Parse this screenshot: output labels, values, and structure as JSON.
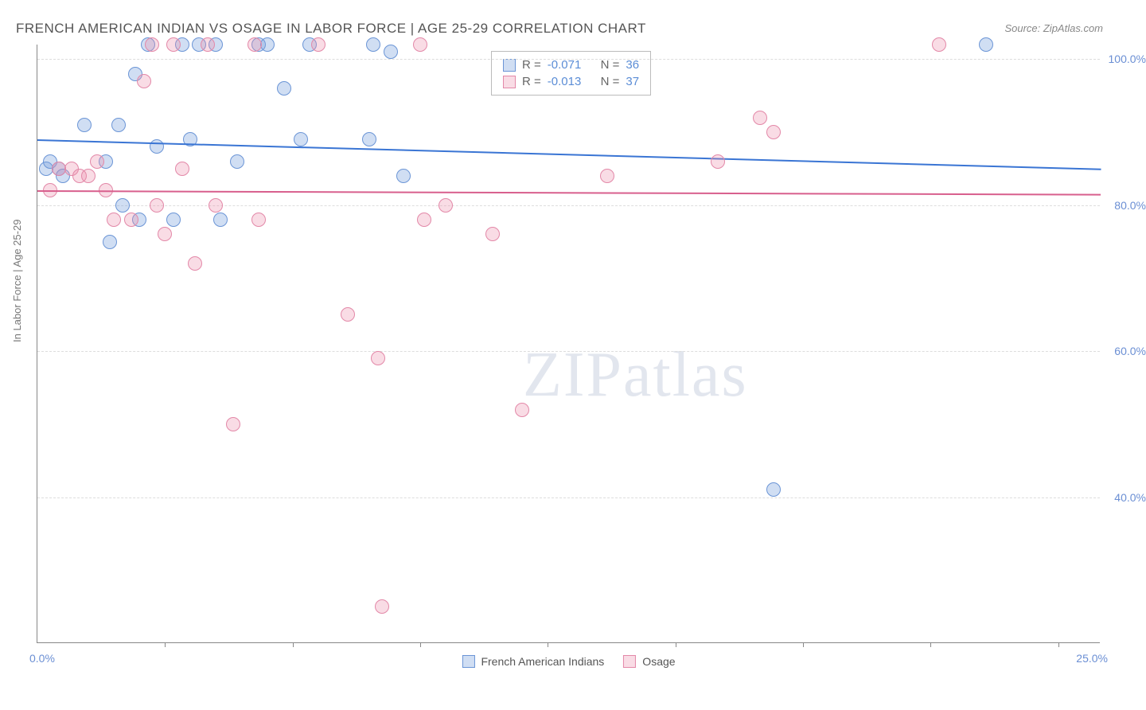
{
  "title": "FRENCH AMERICAN INDIAN VS OSAGE IN LABOR FORCE | AGE 25-29 CORRELATION CHART",
  "source": "Source: ZipAtlas.com",
  "y_axis_label": "In Labor Force | Age 25-29",
  "watermark_bold": "ZIP",
  "watermark_light": "atlas",
  "chart": {
    "type": "scatter",
    "xlim": [
      0,
      25
    ],
    "ylim": [
      20,
      102
    ],
    "y_ticks": [
      40,
      60,
      80,
      100
    ],
    "y_tick_labels": [
      "40.0%",
      "60.0%",
      "80.0%",
      "100.0%"
    ],
    "x_ticks": [
      3,
      6,
      9,
      12,
      15,
      18,
      21,
      24
    ],
    "x_min_label": "0.0%",
    "x_max_label": "25.0%",
    "grid_color": "#dddddd",
    "axis_color": "#888888",
    "background_color": "#ffffff",
    "point_radius": 9,
    "series": [
      {
        "name": "French American Indians",
        "fill": "rgba(120,160,220,0.35)",
        "stroke": "#6b95d6",
        "trend_color": "#3a75d4",
        "R": "-0.071",
        "N": "36",
        "trend": {
          "x1": 0,
          "y1": 89,
          "x2": 25,
          "y2": 85
        },
        "points": [
          {
            "x": 0.2,
            "y": 85
          },
          {
            "x": 0.3,
            "y": 86
          },
          {
            "x": 0.5,
            "y": 85
          },
          {
            "x": 0.6,
            "y": 84
          },
          {
            "x": 1.1,
            "y": 91
          },
          {
            "x": 1.6,
            "y": 86
          },
          {
            "x": 1.7,
            "y": 75
          },
          {
            "x": 1.9,
            "y": 91
          },
          {
            "x": 2.0,
            "y": 80
          },
          {
            "x": 2.3,
            "y": 98
          },
          {
            "x": 2.4,
            "y": 78
          },
          {
            "x": 2.6,
            "y": 102
          },
          {
            "x": 2.8,
            "y": 88
          },
          {
            "x": 3.2,
            "y": 78
          },
          {
            "x": 3.4,
            "y": 102
          },
          {
            "x": 3.6,
            "y": 89
          },
          {
            "x": 3.8,
            "y": 102
          },
          {
            "x": 4.2,
            "y": 102
          },
          {
            "x": 4.3,
            "y": 78
          },
          {
            "x": 4.7,
            "y": 86
          },
          {
            "x": 5.2,
            "y": 102
          },
          {
            "x": 5.4,
            "y": 102
          },
          {
            "x": 5.8,
            "y": 96
          },
          {
            "x": 6.2,
            "y": 89
          },
          {
            "x": 6.4,
            "y": 102
          },
          {
            "x": 7.8,
            "y": 89
          },
          {
            "x": 7.9,
            "y": 102
          },
          {
            "x": 8.3,
            "y": 101
          },
          {
            "x": 8.6,
            "y": 84
          },
          {
            "x": 17.3,
            "y": 41
          },
          {
            "x": 22.3,
            "y": 102
          }
        ]
      },
      {
        "name": "Osage",
        "fill": "rgba(235,140,170,0.30)",
        "stroke": "#e388a8",
        "trend_color": "#d85f8d",
        "R": "-0.013",
        "N": "37",
        "trend": {
          "x1": 0,
          "y1": 82,
          "x2": 25,
          "y2": 81.5
        },
        "points": [
          {
            "x": 0.3,
            "y": 82
          },
          {
            "x": 0.5,
            "y": 85
          },
          {
            "x": 0.8,
            "y": 85
          },
          {
            "x": 1.0,
            "y": 84
          },
          {
            "x": 1.2,
            "y": 84
          },
          {
            "x": 1.4,
            "y": 86
          },
          {
            "x": 1.6,
            "y": 82
          },
          {
            "x": 1.8,
            "y": 78
          },
          {
            "x": 2.2,
            "y": 78
          },
          {
            "x": 2.5,
            "y": 97
          },
          {
            "x": 2.7,
            "y": 102
          },
          {
            "x": 2.8,
            "y": 80
          },
          {
            "x": 3.0,
            "y": 76
          },
          {
            "x": 3.2,
            "y": 102
          },
          {
            "x": 3.4,
            "y": 85
          },
          {
            "x": 3.7,
            "y": 72
          },
          {
            "x": 4.0,
            "y": 102
          },
          {
            "x": 4.2,
            "y": 80
          },
          {
            "x": 4.6,
            "y": 50
          },
          {
            "x": 5.1,
            "y": 102
          },
          {
            "x": 5.2,
            "y": 78
          },
          {
            "x": 6.6,
            "y": 102
          },
          {
            "x": 7.3,
            "y": 65
          },
          {
            "x": 8.0,
            "y": 59
          },
          {
            "x": 8.1,
            "y": 25
          },
          {
            "x": 9.0,
            "y": 102
          },
          {
            "x": 9.1,
            "y": 78
          },
          {
            "x": 9.6,
            "y": 80
          },
          {
            "x": 10.7,
            "y": 76
          },
          {
            "x": 11.4,
            "y": 52
          },
          {
            "x": 13.4,
            "y": 84
          },
          {
            "x": 16.0,
            "y": 86
          },
          {
            "x": 17.0,
            "y": 92
          },
          {
            "x": 17.3,
            "y": 90
          },
          {
            "x": 21.2,
            "y": 102
          }
        ]
      }
    ]
  },
  "legend_top": {
    "r_label": "R =",
    "n_label": "N ="
  },
  "legend_bottom": {
    "series1": "French American Indians",
    "series2": "Osage"
  }
}
